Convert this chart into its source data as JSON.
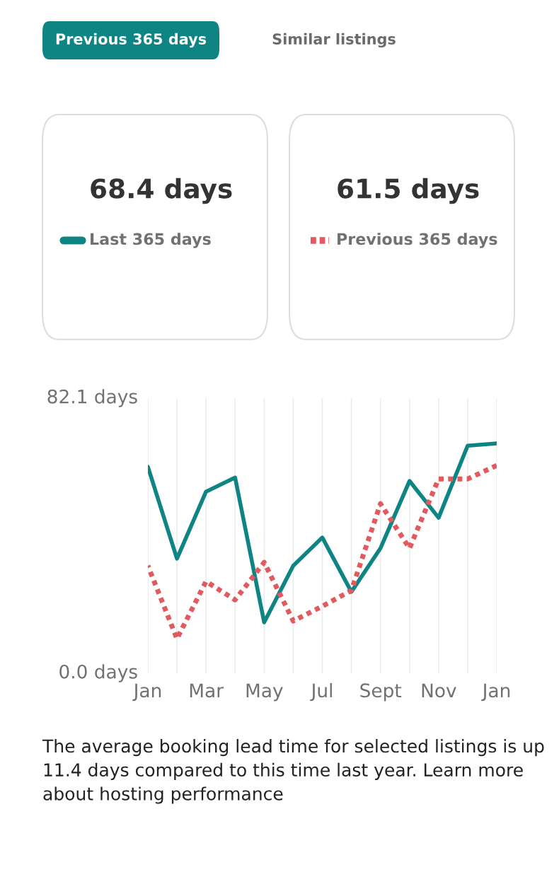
{
  "chart_data": {
    "type": "line",
    "categories": [
      "Jan",
      null,
      "Mar",
      null,
      "May",
      null,
      "Jul",
      null,
      "Sept",
      null,
      "Nov",
      null,
      "Jan"
    ],
    "series": [
      {
        "name": "Last 365 days",
        "color": "#0e8484",
        "line_style": "solid",
        "values": [
          61.6,
          34.2,
          54.2,
          58.4,
          15.2,
          32.1,
          40.5,
          24.3,
          37.3,
          57.4,
          46.4,
          67.9,
          68.6
        ]
      },
      {
        "name": "Previous 365 days",
        "color": "#e05a5f",
        "line_style": "dotted",
        "values": [
          32.1,
          10.3,
          27.4,
          21.9,
          33.1,
          15.6,
          20.0,
          24.7,
          50.6,
          37.3,
          58.0,
          58.0,
          62.0
        ]
      }
    ],
    "ylim": [
      0,
      82.1
    ],
    "yticks": [
      {
        "value": 0,
        "label": "0.0 days"
      },
      {
        "value": 82.1,
        "label": "82.1 days"
      }
    ],
    "grid": "x",
    "legend": "top",
    "marker": "none",
    "annotations": [
      "Previous 365 days",
      "Similar listings",
      "68.4 days",
      "61.5 days",
      "The average booking lead time for selected listings is up 11.4 days compared to this time last year. Learn more about hosting performance"
    ]
  }
}
